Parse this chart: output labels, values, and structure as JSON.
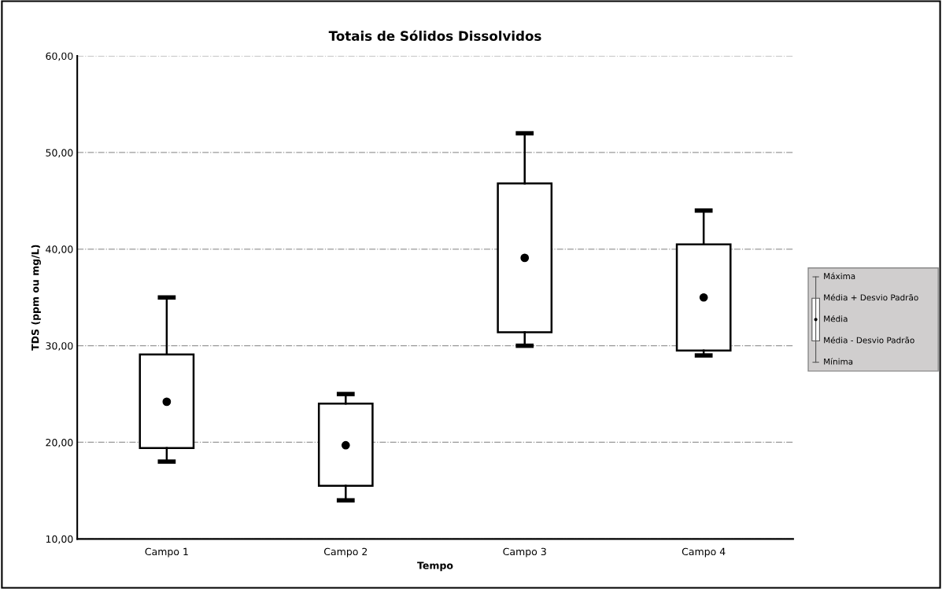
{
  "chart_data": {
    "type": "box",
    "title": "Totais de Sólidos Dissolvidos",
    "xlabel": "Tempo",
    "ylabel": "TDS (ppm ou mg/L)",
    "categories": [
      "Campo 1",
      "Campo 2",
      "Campo 3",
      "Campo 4"
    ],
    "boxes": [
      {
        "low": 18,
        "q1": 19.4,
        "q3": 29.1,
        "high": 35,
        "mean": 24.2
      },
      {
        "low": 14,
        "q1": 15.5,
        "q3": 24.0,
        "high": 25,
        "mean": 19.7
      },
      {
        "low": 30,
        "q1": 31.4,
        "q3": 46.8,
        "high": 52,
        "mean": 39.1
      },
      {
        "low": 29,
        "q1": 29.5,
        "q3": 40.5,
        "high": 44,
        "mean": 35.0
      }
    ],
    "ylim": [
      10,
      60
    ],
    "yticks": [
      {
        "value": 10,
        "label": "10,00"
      },
      {
        "value": 20,
        "label": "20,00"
      },
      {
        "value": 30,
        "label": "30,00"
      },
      {
        "value": 40,
        "label": "40,00"
      },
      {
        "value": 50,
        "label": "50,00"
      },
      {
        "value": 60,
        "label": "60,00"
      }
    ],
    "grid": "y",
    "annotations": [
      "Máxima",
      "Média + Desvio Padrão",
      "Média",
      "Média - Desvio Padrão",
      "Mínima"
    ]
  }
}
